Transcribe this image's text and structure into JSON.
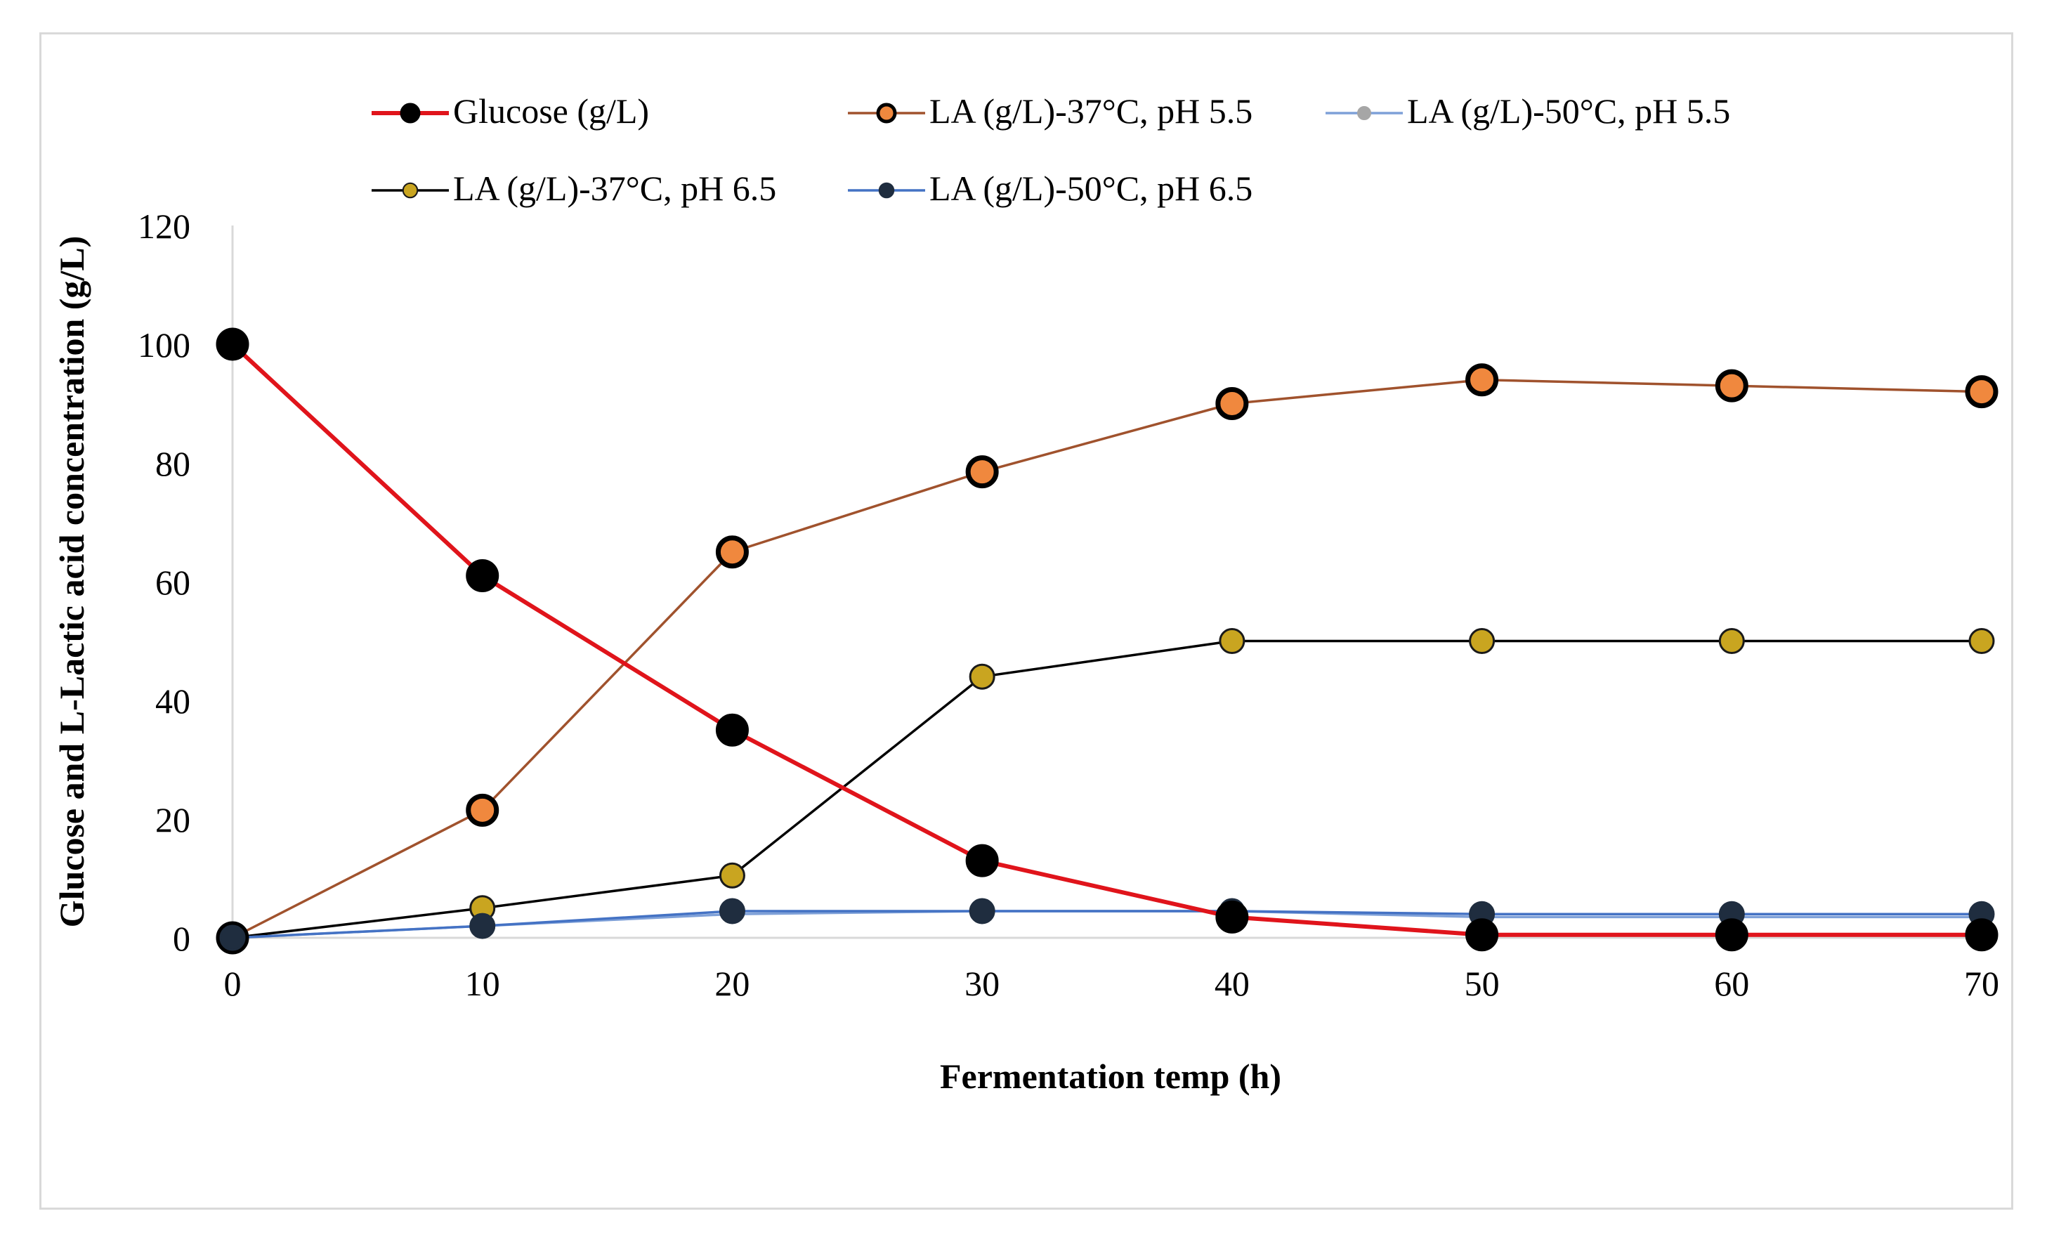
{
  "chart_data": {
    "type": "line",
    "title": "",
    "xlabel": "Fermentation temp (h)",
    "ylabel": "Glucose and L-Lactic acid concentration (g/L)",
    "xlim": [
      0,
      70
    ],
    "ylim": [
      0,
      120
    ],
    "x_ticks": [
      "0",
      "10",
      "20",
      "30",
      "40",
      "50",
      "60",
      "70"
    ],
    "y_ticks": [
      "0",
      "20",
      "40",
      "60",
      "80",
      "100",
      "120"
    ],
    "x": [
      0,
      10,
      20,
      30,
      40,
      50,
      60,
      70
    ],
    "grid": false,
    "legend_position": "top",
    "series": [
      {
        "name": "Glucose (g/L)",
        "values": [
          100,
          61,
          35,
          13,
          3.5,
          0.5,
          0.5,
          0.5
        ],
        "line_color": "#e0141b",
        "marker_fill": "#000000",
        "marker_edge": "#000000",
        "marker": "large"
      },
      {
        "name": "LA (g/L)-37°C, pH 5.5",
        "values": [
          0,
          21.5,
          65,
          78.5,
          90,
          94,
          93,
          92
        ],
        "line_color": "#a0522d",
        "marker_fill": "#f0883e",
        "marker_edge": "#000000",
        "marker": "large"
      },
      {
        "name": "LA (g/L)-50°C, pH 5.5",
        "values": [
          0,
          2,
          4,
          4.5,
          4.5,
          3.5,
          3.5,
          3.5
        ],
        "line_color": "#7ea0d8",
        "marker_fill": "#a6a6a6",
        "marker_edge": "#a6a6a6",
        "marker": "small"
      },
      {
        "name": "LA (g/L)-37°C, pH 6.5",
        "values": [
          0,
          5,
          10.5,
          44,
          50,
          50,
          50,
          50
        ],
        "line_color": "#000000",
        "marker_fill": "#c9a520",
        "marker_edge": "#1a1a1a",
        "marker": "medium"
      },
      {
        "name": "LA (g/L)-50°C, pH 6.5",
        "values": [
          0,
          2,
          4.5,
          4.5,
          4.5,
          4,
          4,
          4
        ],
        "line_color": "#4472c4",
        "marker_fill": "#1f2d3f",
        "marker_edge": "#1f2d3f",
        "marker": "medium"
      }
    ]
  }
}
